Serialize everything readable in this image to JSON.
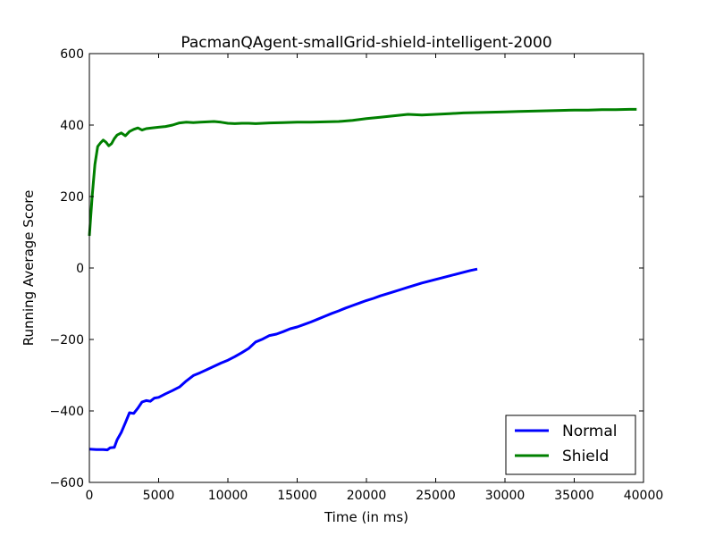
{
  "chart_data": {
    "type": "line",
    "title": "PacmanQAgent-smallGrid-shield-intelligent-2000",
    "xlabel": "Time (in ms)",
    "ylabel": "Running Average Score",
    "xlim": [
      0,
      40000
    ],
    "ylim": [
      -600,
      600
    ],
    "xticks": [
      0,
      5000,
      10000,
      15000,
      20000,
      25000,
      30000,
      35000,
      40000
    ],
    "yticks": [
      -600,
      -400,
      -200,
      0,
      200,
      400,
      600
    ],
    "xtick_labels": [
      "0",
      "5000",
      "10000",
      "15000",
      "20000",
      "25000",
      "30000",
      "35000",
      "40000"
    ],
    "ytick_labels": [
      "−600",
      "−400",
      "−200",
      "0",
      "200",
      "400",
      "600"
    ],
    "grid": false,
    "legend_position": "lower-right",
    "series": [
      {
        "name": "Normal",
        "color": "#0000ff",
        "x": [
          0,
          500,
          1000,
          1300,
          1500,
          1800,
          2000,
          2300,
          2600,
          2900,
          3200,
          3500,
          3800,
          4100,
          4400,
          4700,
          5000,
          5500,
          6000,
          6500,
          7000,
          7500,
          8000,
          8500,
          9000,
          9500,
          10000,
          10500,
          11000,
          11500,
          12000,
          12500,
          13000,
          13500,
          14000,
          14500,
          15000,
          15500,
          16000,
          16500,
          17000,
          17500,
          18000,
          18500,
          19000,
          19500,
          20000,
          20500,
          21000,
          21500,
          22000,
          22500,
          23000,
          23500,
          24000,
          24500,
          25000,
          25500,
          26000,
          26500,
          27000,
          27500,
          28000
        ],
        "values": [
          -507,
          -508,
          -508,
          -509,
          -503,
          -502,
          -481,
          -460,
          -433,
          -405,
          -407,
          -392,
          -375,
          -371,
          -373,
          -364,
          -362,
          -352,
          -343,
          -333,
          -316,
          -301,
          -293,
          -284,
          -275,
          -266,
          -258,
          -248,
          -237,
          -225,
          -207,
          -199,
          -189,
          -185,
          -178,
          -170,
          -165,
          -158,
          -151,
          -143,
          -135,
          -127,
          -120,
          -112,
          -105,
          -98,
          -91,
          -85,
          -78,
          -72,
          -66,
          -60,
          -54,
          -48,
          -42,
          -37,
          -32,
          -27,
          -22,
          -17,
          -12,
          -7,
          -3
        ]
      },
      {
        "name": "Shield",
        "color": "#008000",
        "x": [
          0,
          200,
          400,
          600,
          800,
          1000,
          1200,
          1400,
          1600,
          1800,
          2000,
          2300,
          2600,
          2900,
          3200,
          3500,
          3800,
          4100,
          4500,
          5000,
          5500,
          6000,
          6500,
          7000,
          7500,
          8000,
          8500,
          9000,
          9500,
          10000,
          10500,
          11000,
          11500,
          12000,
          13000,
          14000,
          15000,
          16000,
          17000,
          18000,
          19000,
          20000,
          21000,
          22000,
          23000,
          24000,
          25000,
          26000,
          27000,
          28000,
          29000,
          30000,
          31000,
          32000,
          33000,
          34000,
          35000,
          36000,
          37000,
          38000,
          39000,
          39500
        ],
        "values": [
          90,
          200,
          290,
          340,
          350,
          358,
          352,
          342,
          348,
          362,
          372,
          378,
          370,
          382,
          388,
          392,
          386,
          390,
          392,
          394,
          396,
          400,
          406,
          408,
          407,
          408,
          409,
          410,
          408,
          405,
          404,
          405,
          405,
          404,
          406,
          407,
          408,
          408,
          409,
          410,
          413,
          418,
          422,
          426,
          430,
          428,
          430,
          432,
          434,
          435,
          436,
          437,
          438,
          439,
          440,
          441,
          442,
          442,
          443,
          443,
          444,
          444
        ]
      }
    ]
  }
}
